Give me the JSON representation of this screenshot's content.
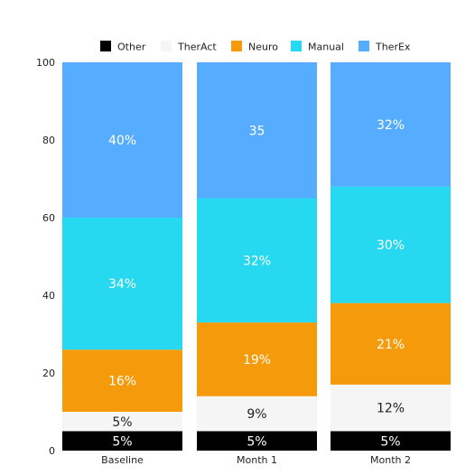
{
  "chart_data": {
    "type": "bar",
    "stacked": true,
    "categories": [
      "Baseline",
      "Month 1",
      "Month 2"
    ],
    "series": [
      {
        "name": "Other",
        "color": "#000000",
        "label_color": "#ffffff",
        "values": [
          5,
          5,
          5
        ],
        "labels": [
          "5%",
          "5%",
          "5%"
        ]
      },
      {
        "name": "TherAct",
        "color": "#f5f5f5",
        "label_color": "#222222",
        "values": [
          5,
          9,
          12
        ],
        "labels": [
          "5%",
          "9%",
          "12%"
        ]
      },
      {
        "name": "Neuro",
        "color": "#f59b0b",
        "label_color": "#ffffff",
        "values": [
          16,
          19,
          21
        ],
        "labels": [
          "16%",
          "19%",
          "21%"
        ]
      },
      {
        "name": "Manual",
        "color": "#26d8f0",
        "label_color": "#ffffff",
        "values": [
          34,
          32,
          30
        ],
        "labels": [
          "34%",
          "32%",
          "30%"
        ]
      },
      {
        "name": "TherEx",
        "color": "#56adff",
        "label_color": "#ffffff",
        "values": [
          40,
          35,
          32
        ],
        "labels": [
          "40%",
          "35",
          "32%"
        ]
      }
    ],
    "title": "",
    "xlabel": "",
    "ylabel": "",
    "ylim": [
      0,
      100
    ],
    "yticks": [
      0,
      20,
      40,
      60,
      80,
      100
    ],
    "grid": false,
    "legend": "top-center"
  }
}
